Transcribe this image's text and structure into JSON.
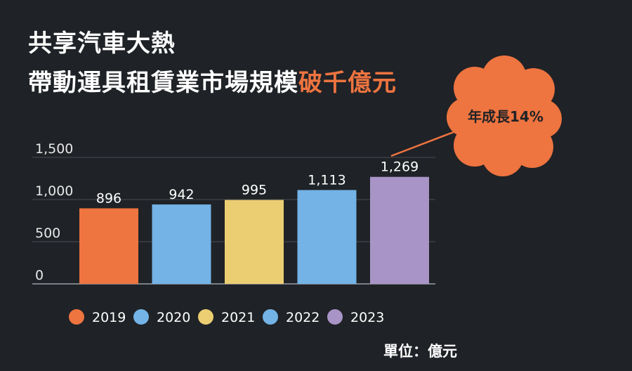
{
  "title": {
    "line1": "共享汽車大熱",
    "line2_main": "帶動運具租賃業市場規模",
    "line2_accent": "破千億元",
    "accent_color": "#ee7440"
  },
  "callout": {
    "text": "年成長14%",
    "color": "#ee7440"
  },
  "unit_label": "單位：億元",
  "chart_data": {
    "type": "bar",
    "categories": [
      "2019",
      "2020",
      "2021",
      "2022",
      "2023"
    ],
    "values": [
      896,
      942,
      995,
      1113,
      1269
    ],
    "value_labels": [
      "896",
      "942",
      "995",
      "1,113",
      "1,269"
    ],
    "colors": [
      "#ee7440",
      "#73b3e6",
      "#ecce72",
      "#73b3e6",
      "#a894c6"
    ],
    "yticks": [
      0,
      500,
      1000,
      1500
    ],
    "ytick_labels": [
      "0",
      "500",
      "1,000",
      "1,500"
    ],
    "ylim": [
      0,
      1500
    ],
    "grid": true,
    "legend_position": "bottom",
    "title": "",
    "xlabel": "",
    "ylabel": ""
  }
}
